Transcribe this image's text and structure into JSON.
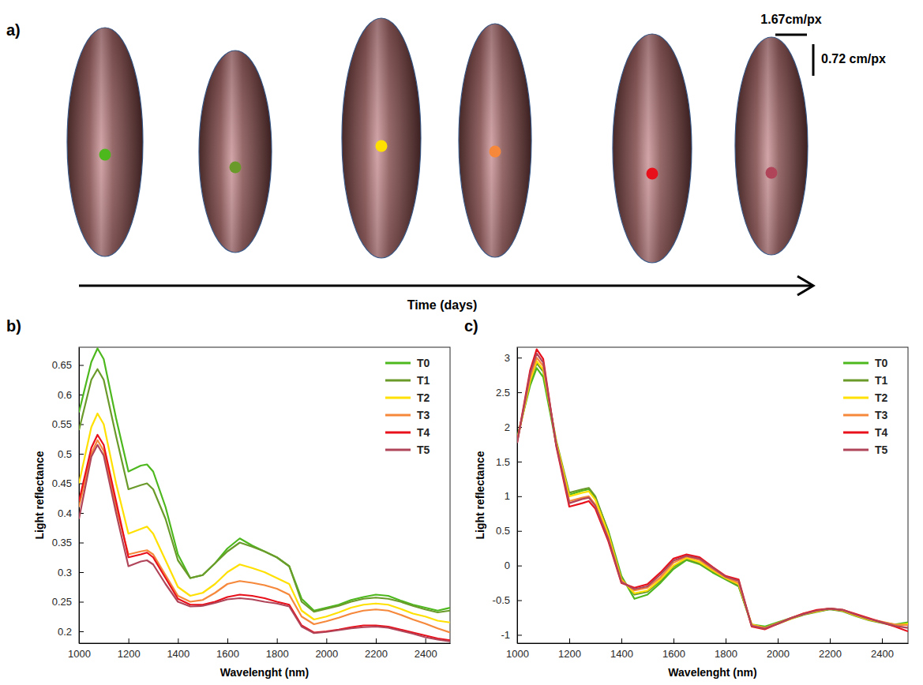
{
  "panel_a": {
    "label": "a)",
    "scale_x": "1.67cm/px",
    "scale_y": "0.72 cm/px",
    "time_label": "Time (days)",
    "spot_colors": [
      "#4db81e",
      "#6a9a2a",
      "#ffe000",
      "#f5883a",
      "#e8101a",
      "#b0455a"
    ]
  },
  "chart_data": [
    {
      "panel": "b)",
      "type": "line",
      "x_label": "Wavelenght (nm)",
      "y_label": "Light reflectance",
      "x": [
        1000,
        1050,
        1075,
        1100,
        1150,
        1200,
        1250,
        1275,
        1300,
        1350,
        1400,
        1450,
        1500,
        1550,
        1600,
        1650,
        1700,
        1750,
        1800,
        1850,
        1900,
        1950,
        2000,
        2050,
        2100,
        2150,
        2200,
        2250,
        2300,
        2350,
        2400,
        2450,
        2500
      ],
      "xlim": [
        1000,
        2500
      ],
      "xticks": [
        1000,
        1200,
        1400,
        1600,
        1800,
        2000,
        2200,
        2400
      ],
      "ylim": [
        0.18,
        0.68
      ],
      "yticks": [
        0.2,
        0.25,
        0.3,
        0.35,
        0.4,
        0.45,
        0.5,
        0.55,
        0.6,
        0.65
      ],
      "legend": "upper right",
      "series": [
        {
          "name": "T0",
          "color": "#4db81e",
          "values": [
            0.57,
            0.655,
            0.678,
            0.66,
            0.56,
            0.47,
            0.48,
            0.482,
            0.47,
            0.41,
            0.33,
            0.29,
            0.295,
            0.315,
            0.34,
            0.357,
            0.345,
            0.335,
            0.325,
            0.31,
            0.255,
            0.235,
            0.24,
            0.245,
            0.253,
            0.258,
            0.262,
            0.26,
            0.252,
            0.245,
            0.24,
            0.235,
            0.24
          ]
        },
        {
          "name": "T1",
          "color": "#6a9a2a",
          "values": [
            0.54,
            0.625,
            0.643,
            0.625,
            0.53,
            0.44,
            0.447,
            0.45,
            0.44,
            0.39,
            0.32,
            0.29,
            0.295,
            0.315,
            0.335,
            0.35,
            0.343,
            0.335,
            0.325,
            0.31,
            0.25,
            0.233,
            0.238,
            0.243,
            0.25,
            0.255,
            0.257,
            0.255,
            0.25,
            0.243,
            0.237,
            0.232,
            0.235
          ]
        },
        {
          "name": "T2",
          "color": "#ffe000",
          "values": [
            0.45,
            0.545,
            0.568,
            0.55,
            0.45,
            0.365,
            0.373,
            0.377,
            0.365,
            0.32,
            0.275,
            0.26,
            0.265,
            0.28,
            0.3,
            0.313,
            0.307,
            0.3,
            0.29,
            0.28,
            0.235,
            0.22,
            0.225,
            0.232,
            0.24,
            0.245,
            0.247,
            0.245,
            0.238,
            0.23,
            0.225,
            0.218,
            0.215
          ]
        },
        {
          "name": "T3",
          "color": "#f5883a",
          "values": [
            0.41,
            0.5,
            0.523,
            0.505,
            0.41,
            0.33,
            0.335,
            0.337,
            0.33,
            0.295,
            0.26,
            0.25,
            0.253,
            0.265,
            0.28,
            0.285,
            0.282,
            0.278,
            0.272,
            0.262,
            0.225,
            0.212,
            0.217,
            0.223,
            0.23,
            0.235,
            0.237,
            0.235,
            0.228,
            0.22,
            0.213,
            0.205,
            0.198
          ]
        },
        {
          "name": "T4",
          "color": "#e8101a",
          "values": [
            0.42,
            0.51,
            0.532,
            0.515,
            0.42,
            0.325,
            0.33,
            0.333,
            0.325,
            0.29,
            0.255,
            0.245,
            0.245,
            0.25,
            0.258,
            0.262,
            0.26,
            0.256,
            0.25,
            0.245,
            0.21,
            0.198,
            0.2,
            0.203,
            0.207,
            0.21,
            0.21,
            0.208,
            0.203,
            0.198,
            0.193,
            0.188,
            0.185
          ]
        },
        {
          "name": "T5",
          "color": "#b0455a",
          "values": [
            0.39,
            0.495,
            0.515,
            0.497,
            0.4,
            0.31,
            0.318,
            0.32,
            0.313,
            0.28,
            0.25,
            0.242,
            0.243,
            0.248,
            0.254,
            0.256,
            0.254,
            0.25,
            0.247,
            0.242,
            0.208,
            0.197,
            0.199,
            0.202,
            0.205,
            0.207,
            0.208,
            0.206,
            0.201,
            0.196,
            0.19,
            0.186,
            0.183
          ]
        }
      ]
    },
    {
      "panel": "c)",
      "type": "line",
      "x_label": "Wavelenght (nm)",
      "y_label": "Light reflectance",
      "x": [
        1000,
        1050,
        1075,
        1100,
        1150,
        1200,
        1250,
        1275,
        1300,
        1350,
        1400,
        1450,
        1500,
        1550,
        1600,
        1650,
        1700,
        1750,
        1800,
        1850,
        1900,
        1950,
        2000,
        2050,
        2100,
        2150,
        2200,
        2250,
        2300,
        2350,
        2400,
        2450,
        2500
      ],
      "xlim": [
        1000,
        2500
      ],
      "xticks": [
        1000,
        1200,
        1400,
        1600,
        1800,
        2000,
        2200,
        2400
      ],
      "ylim": [
        -1.12,
        3.15
      ],
      "yticks": [
        -1,
        -0.5,
        0,
        0.5,
        1,
        1.5,
        2,
        2.5,
        3
      ],
      "legend": "upper right",
      "series": [
        {
          "name": "T0",
          "color": "#4db81e",
          "values": [
            1.85,
            2.6,
            2.85,
            2.72,
            1.75,
            1.02,
            1.08,
            1.1,
            0.98,
            0.5,
            -0.15,
            -0.48,
            -0.42,
            -0.25,
            -0.05,
            0.08,
            0.02,
            -0.1,
            -0.2,
            -0.3,
            -0.85,
            -0.88,
            -0.82,
            -0.76,
            -0.7,
            -0.66,
            -0.63,
            -0.65,
            -0.72,
            -0.78,
            -0.82,
            -0.85,
            -0.82
          ]
        },
        {
          "name": "T1",
          "color": "#6a9a2a",
          "values": [
            1.82,
            2.65,
            2.92,
            2.8,
            1.8,
            1.05,
            1.1,
            1.12,
            1.0,
            0.48,
            -0.18,
            -0.42,
            -0.38,
            -0.22,
            -0.02,
            0.1,
            0.03,
            -0.08,
            -0.19,
            -0.29,
            -0.86,
            -0.9,
            -0.84,
            -0.77,
            -0.71,
            -0.67,
            -0.63,
            -0.66,
            -0.73,
            -0.79,
            -0.83,
            -0.87,
            -0.85
          ]
        },
        {
          "name": "T2",
          "color": "#ffe000",
          "values": [
            1.8,
            2.67,
            2.95,
            2.83,
            1.78,
            1.0,
            1.05,
            1.07,
            0.95,
            0.45,
            -0.2,
            -0.4,
            -0.36,
            -0.2,
            0.0,
            0.11,
            0.05,
            -0.07,
            -0.18,
            -0.27,
            -0.85,
            -0.9,
            -0.84,
            -0.77,
            -0.7,
            -0.66,
            -0.62,
            -0.65,
            -0.72,
            -0.78,
            -0.82,
            -0.86,
            -0.84
          ]
        },
        {
          "name": "T3",
          "color": "#f5883a",
          "values": [
            1.8,
            2.72,
            3.0,
            2.88,
            1.75,
            0.93,
            0.98,
            1.0,
            0.88,
            0.4,
            -0.22,
            -0.36,
            -0.32,
            -0.17,
            0.04,
            0.13,
            0.08,
            -0.05,
            -0.17,
            -0.25,
            -0.86,
            -0.9,
            -0.83,
            -0.76,
            -0.69,
            -0.65,
            -0.62,
            -0.64,
            -0.71,
            -0.77,
            -0.81,
            -0.85,
            -0.86
          ]
        },
        {
          "name": "T4",
          "color": "#e8101a",
          "values": [
            1.78,
            2.82,
            3.12,
            2.98,
            1.72,
            0.85,
            0.9,
            0.93,
            0.82,
            0.35,
            -0.25,
            -0.32,
            -0.27,
            -0.1,
            0.1,
            0.16,
            0.12,
            -0.02,
            -0.15,
            -0.2,
            -0.88,
            -0.92,
            -0.84,
            -0.76,
            -0.69,
            -0.64,
            -0.62,
            -0.64,
            -0.7,
            -0.76,
            -0.82,
            -0.88,
            -0.95
          ]
        },
        {
          "name": "T5",
          "color": "#b0455a",
          "values": [
            1.77,
            2.78,
            3.06,
            2.93,
            1.74,
            0.9,
            0.96,
            0.98,
            0.86,
            0.38,
            -0.24,
            -0.34,
            -0.3,
            -0.13,
            0.07,
            0.14,
            0.1,
            -0.03,
            -0.16,
            -0.22,
            -0.87,
            -0.91,
            -0.84,
            -0.76,
            -0.7,
            -0.65,
            -0.62,
            -0.64,
            -0.71,
            -0.77,
            -0.82,
            -0.87,
            -0.9
          ]
        }
      ]
    }
  ]
}
